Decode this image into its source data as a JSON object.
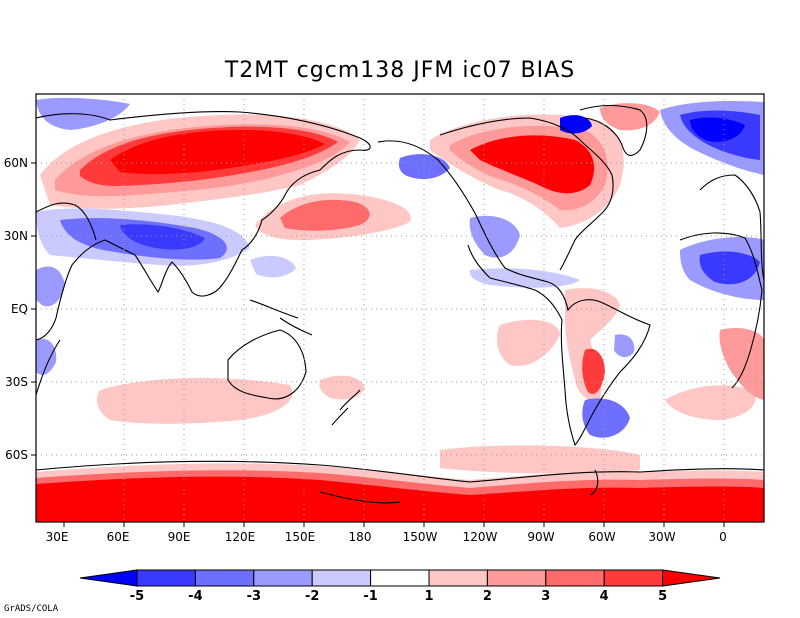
{
  "title": "T2MT cgcm138 JFM ic07 BIAS",
  "credit": "GrADS/COLA",
  "map": {
    "lon_labels": [
      "30E",
      "60E",
      "90E",
      "120E",
      "150E",
      "180",
      "150W",
      "120W",
      "90W",
      "60W",
      "30W",
      "0"
    ],
    "lat_labels": [
      "60N",
      "30N",
      "EQ",
      "30S",
      "60S"
    ]
  },
  "colorbar": {
    "labels": [
      "-5",
      "-4",
      "-3",
      "-2",
      "-1",
      "1",
      "2",
      "3",
      "4",
      "5"
    ],
    "colors": [
      "#0000ff",
      "#3a3aff",
      "#6f6fff",
      "#9b9bff",
      "#cacaff",
      "#ffffff",
      "#ffc6c6",
      "#ff9a9a",
      "#ff6b6b",
      "#ff3a3a",
      "#ff0000"
    ]
  },
  "colors": {
    "warm_strong": "#ff0000",
    "warm_mid": "#ff6b6b",
    "warm_light": "#ffc6c6",
    "cool_strong": "#0000ff",
    "cool_mid": "#6f6fff",
    "cool_light": "#cacaff",
    "coast": "#000000",
    "grid": "#9a9a9a"
  }
}
